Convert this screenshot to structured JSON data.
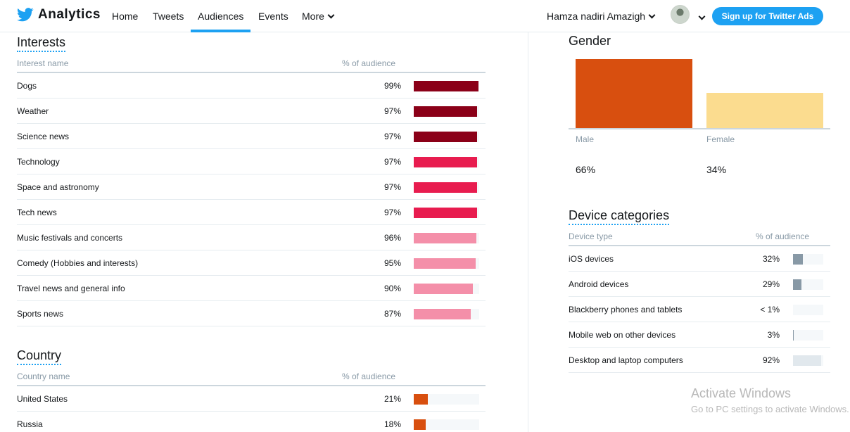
{
  "nav": {
    "brand": "Analytics",
    "links": [
      "Home",
      "Tweets",
      "Audiences",
      "Events",
      "More"
    ],
    "active": "Audiences",
    "user_name": "Hamza nadiri Amazigh",
    "signup_label": "Sign up for Twitter Ads"
  },
  "interests": {
    "title": "Interests",
    "col_name": "Interest name",
    "col_pct": "% of audience",
    "rows": [
      {
        "name": "Dogs",
        "pct_label": "99%",
        "pct": 99,
        "color": "#8b0018"
      },
      {
        "name": "Weather",
        "pct_label": "97%",
        "pct": 97,
        "color": "#8b0018"
      },
      {
        "name": "Science news",
        "pct_label": "97%",
        "pct": 97,
        "color": "#8b0018"
      },
      {
        "name": "Technology",
        "pct_label": "97%",
        "pct": 97,
        "color": "#e81c4f"
      },
      {
        "name": "Space and astronomy",
        "pct_label": "97%",
        "pct": 97,
        "color": "#e81c4f"
      },
      {
        "name": "Tech news",
        "pct_label": "97%",
        "pct": 97,
        "color": "#e81c4f"
      },
      {
        "name": "Music festivals and concerts",
        "pct_label": "96%",
        "pct": 96,
        "color": "#f48fa9"
      },
      {
        "name": "Comedy (Hobbies and interests)",
        "pct_label": "95%",
        "pct": 95,
        "color": "#f48fa9"
      },
      {
        "name": "Travel news and general info",
        "pct_label": "90%",
        "pct": 90,
        "color": "#f48fa9"
      },
      {
        "name": "Sports news",
        "pct_label": "87%",
        "pct": 87,
        "color": "#f48fa9"
      }
    ]
  },
  "country": {
    "title": "Country",
    "col_name": "Country name",
    "col_pct": "% of audience",
    "rows": [
      {
        "name": "United States",
        "pct_label": "21%",
        "pct": 21,
        "color": "#d84f0f"
      },
      {
        "name": "Russia",
        "pct_label": "18%",
        "pct": 18,
        "color": "#d84f0f"
      }
    ]
  },
  "gender": {
    "title": "Gender",
    "male_label": "Male",
    "female_label": "Female",
    "male_pct_label": "66%",
    "female_pct_label": "34%",
    "male_pct": 66,
    "female_pct": 34,
    "male_color": "#d84f0f",
    "female_color": "#fbdc8f"
  },
  "devices": {
    "title": "Device categories",
    "col_name": "Device type",
    "col_pct": "% of audience",
    "rows": [
      {
        "name": "iOS devices",
        "pct_label": "32%",
        "pct": 32,
        "color": "#8899a6"
      },
      {
        "name": "Android devices",
        "pct_label": "29%",
        "pct": 29,
        "color": "#8899a6"
      },
      {
        "name": "Blackberry phones and tablets",
        "pct_label": "< 1%",
        "pct": 0,
        "color": "#8899a6"
      },
      {
        "name": "Mobile web on other devices",
        "pct_label": "3%",
        "pct": 3,
        "color": "#8899a6"
      },
      {
        "name": "Desktop and laptop computers",
        "pct_label": "92%",
        "pct": 92,
        "color": "#e1e8ed"
      }
    ]
  },
  "watermark": {
    "title": "Activate Windows",
    "subtitle": "Go to PC settings to activate Windows."
  }
}
